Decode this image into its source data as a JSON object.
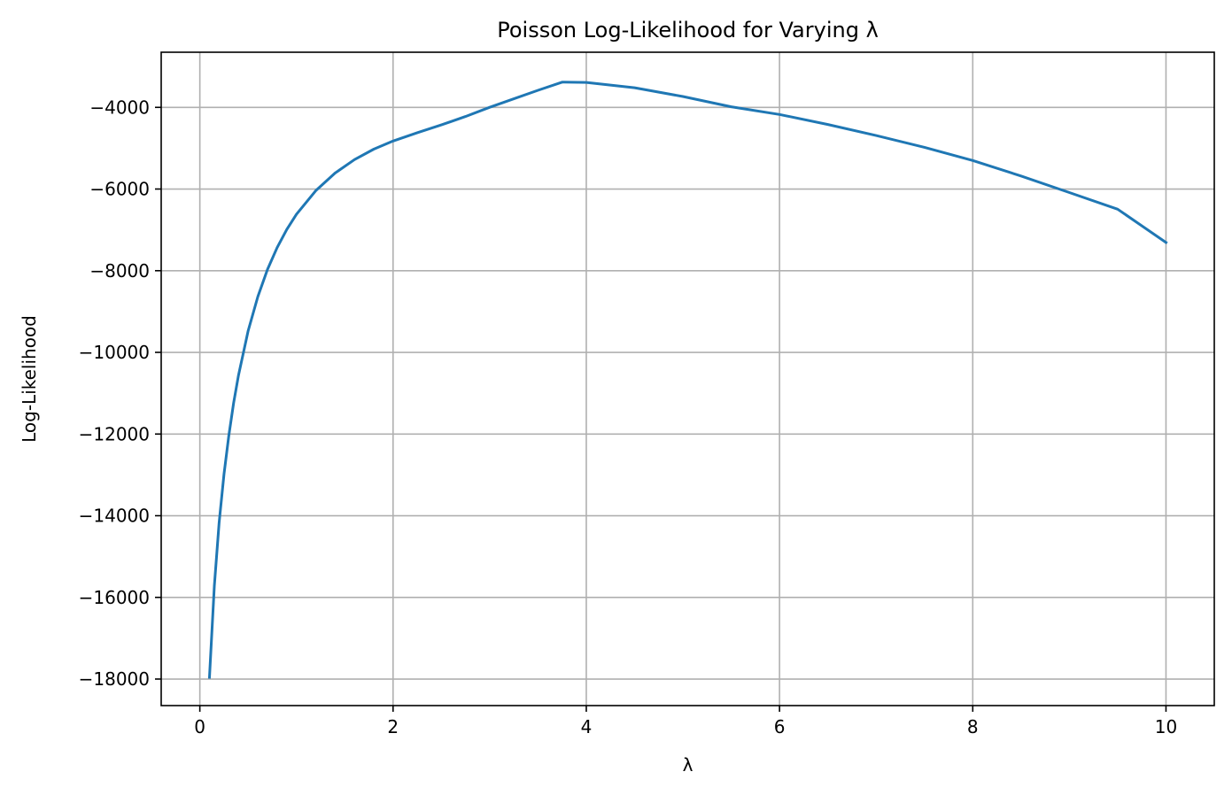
{
  "chart_data": {
    "type": "line",
    "title": "Poisson Log-Likelihood for Varying λ",
    "xlabel": "λ",
    "ylabel": "Log-Likelihood",
    "xlim": [
      -0.4,
      10.5
    ],
    "ylim": [
      -18650,
      -2650
    ],
    "xticks": [
      0,
      2,
      4,
      6,
      8,
      10
    ],
    "yticks": [
      -18000,
      -16000,
      -14000,
      -12000,
      -10000,
      -8000,
      -6000,
      -4000
    ],
    "xtick_labels": [
      "0",
      "2",
      "4",
      "6",
      "8",
      "10"
    ],
    "ytick_labels": [
      "−18000",
      "−16000",
      "−14000",
      "−12000",
      "−10000",
      "−8000",
      "−6000",
      "−4000"
    ],
    "grid": true,
    "series": [
      {
        "color": "#1f77b4",
        "x": [
          0.1,
          0.15,
          0.2,
          0.25,
          0.3,
          0.35,
          0.4,
          0.5,
          0.6,
          0.7,
          0.8,
          0.9,
          1.0,
          1.2,
          1.4,
          1.6,
          1.8,
          2.0,
          2.25,
          2.5,
          2.75,
          3.0,
          3.25,
          3.5,
          3.75,
          4.0,
          4.5,
          5.0,
          5.5,
          6.0,
          6.5,
          7.0,
          7.5,
          8.0,
          8.5,
          9.0,
          9.5,
          10.0
        ],
        "y": [
          -17958,
          -15720,
          -14170,
          -12985,
          -12030,
          -11235,
          -10560,
          -9470,
          -8635,
          -7970,
          -7435,
          -6990,
          -6620,
          -6040,
          -5610,
          -5280,
          -5025,
          -4825,
          -4620,
          -4430,
          -4225,
          -3998,
          -3790,
          -3582,
          -3382,
          -3390,
          -3520,
          -3735,
          -3985,
          -4174,
          -4420,
          -4690,
          -4978,
          -5302,
          -5680,
          -6086,
          -6494,
          -7310
        ]
      }
    ]
  }
}
